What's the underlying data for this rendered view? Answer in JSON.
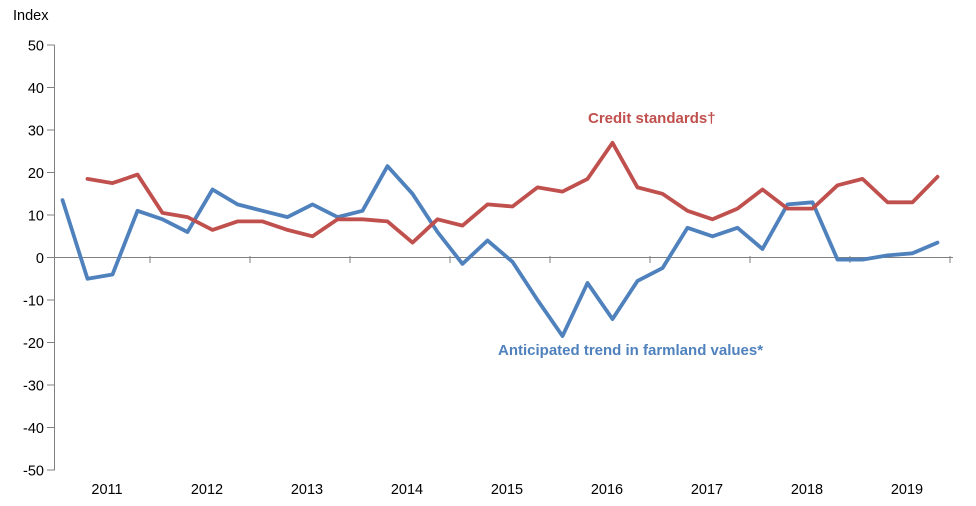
{
  "chart_data": {
    "type": "line",
    "title": "",
    "axis_title": "Index",
    "ylabel": "Index",
    "xlabel": "",
    "ylim": [
      -50,
      50
    ],
    "y_ticks": [
      50,
      40,
      30,
      20,
      10,
      0,
      -10,
      -20,
      -30,
      -40,
      -50
    ],
    "x_years": [
      "2011",
      "2012",
      "2013",
      "2014",
      "2015",
      "2016",
      "2017",
      "2018",
      "2019"
    ],
    "x_frequency": "quarterly",
    "grid": "zero-line-only",
    "legend_position": "inline-labels-near-lines",
    "axis_color": "#808080",
    "tick_label_color": "#000000",
    "series": [
      {
        "name": "Anticipated trend in farmland values*",
        "color": "#4F81BD",
        "start_quarter": "2011 Q1",
        "start_index": 0,
        "values": [
          13.5,
          -5,
          -4,
          11,
          9,
          6,
          16,
          12.5,
          11,
          9.5,
          12.5,
          9.5,
          11,
          21.5,
          15,
          6,
          -1.5,
          4,
          -1,
          -10,
          -18.5,
          -6,
          -14.5,
          -5.5,
          -2.5,
          7,
          5,
          7,
          2,
          12.5,
          13,
          -0.5,
          -0.5,
          0.5,
          1,
          3.5
        ]
      },
      {
        "name": "Credit standards†",
        "color": "#C0504D",
        "start_quarter": "2011 Q2",
        "start_index": 1,
        "values": [
          18.5,
          17.5,
          19.5,
          10.5,
          9.5,
          6.5,
          8.5,
          8.5,
          6.5,
          5,
          9,
          9,
          8.5,
          3.5,
          9,
          7.5,
          12.5,
          12,
          16.5,
          15.5,
          18.5,
          27,
          16.5,
          15,
          11,
          9,
          11.5,
          16,
          11.5,
          11.5,
          17,
          18.5,
          13,
          13,
          19
        ]
      }
    ],
    "labels": {
      "credit": {
        "text": "Credit standards†",
        "color": "#C0504D"
      },
      "farmland": {
        "text": "Anticipated trend in farmland values*",
        "color": "#4F81BD"
      }
    }
  }
}
